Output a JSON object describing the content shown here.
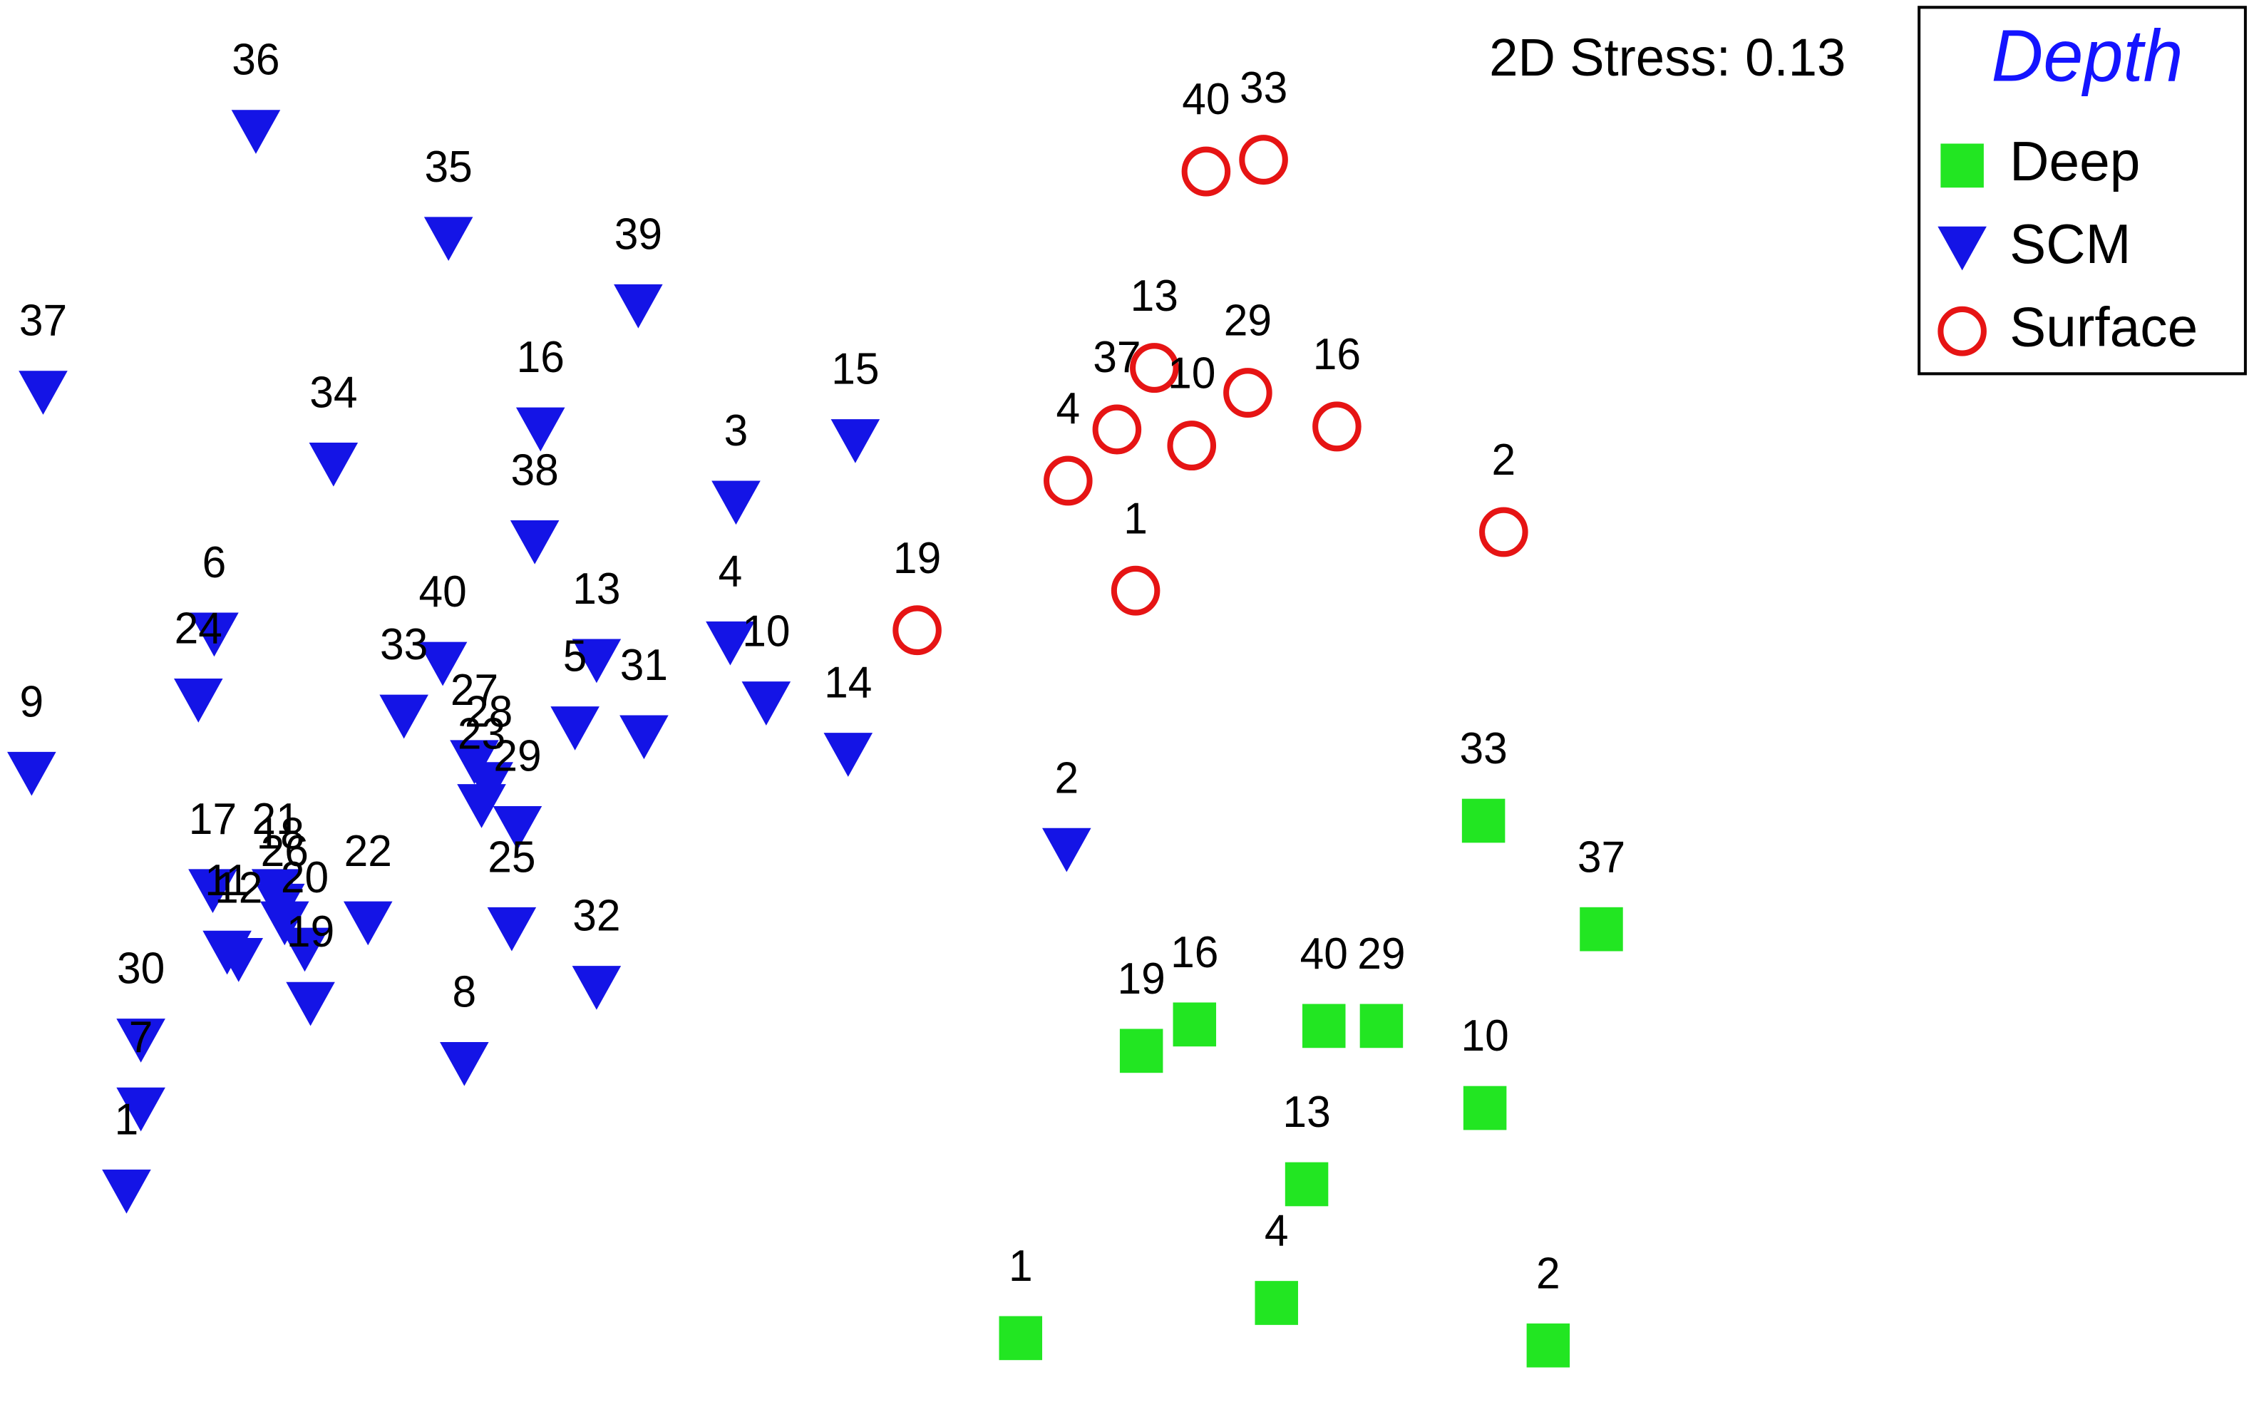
{
  "chart_data": {
    "type": "scatter",
    "annotation": "2D Stress: 0.13",
    "legend_title": "Depth",
    "legend_title_color": "#1414ff",
    "legend": "upper right",
    "grid": false,
    "xlim": [
      0,
      1568
    ],
    "ylim": [
      0,
      960
    ],
    "series": [
      {
        "name": "Deep",
        "color": "#22e622",
        "marker": "square",
        "labels": [
          "33",
          "37",
          "19",
          "16",
          "40",
          "29",
          "10",
          "13",
          "4",
          "1",
          "2"
        ],
        "x": [
          1032,
          1114,
          794,
          831,
          921,
          961,
          1033,
          909,
          888,
          710,
          1077
        ],
        "y": [
          400,
          326,
          243,
          261,
          260,
          260,
          204,
          152,
          71,
          47,
          42
        ]
      },
      {
        "name": "SCM",
        "color": "#1414e6",
        "marker": "triangle-down",
        "labels": [
          "36",
          "35",
          "39",
          "37",
          "34",
          "16",
          "15",
          "3",
          "38",
          "6",
          "24",
          "40",
          "33",
          "13",
          "5",
          "31",
          "4",
          "10",
          "14",
          "9",
          "27",
          "28",
          "23",
          "29",
          "2",
          "17",
          "21",
          "18",
          "26",
          "11",
          "12",
          "22",
          "25",
          "20",
          "19",
          "30",
          "32",
          "8",
          "7",
          "1"
        ],
        "x": [
          178,
          312,
          444,
          30,
          232,
          376,
          595,
          512,
          372,
          149,
          138,
          308,
          281,
          415,
          400,
          448,
          508,
          533,
          590,
          22,
          330,
          340,
          335,
          360,
          742,
          148,
          192,
          195,
          198,
          158,
          166,
          256,
          356,
          212,
          216,
          98,
          415,
          323,
          98,
          88
        ],
        "y": [
          870,
          797,
          751,
          692,
          643,
          667,
          659,
          617,
          590,
          527,
          482,
          507,
          471,
          509,
          463,
          457,
          521,
          480,
          445,
          432,
          440,
          425,
          410,
          395,
          380,
          352,
          352,
          342,
          330,
          310,
          305,
          330,
          326,
          312,
          275,
          250,
          286,
          234,
          203,
          147
        ]
      },
      {
        "name": "Surface",
        "color": "#e61414",
        "marker": "circle",
        "labels": [
          "40",
          "33",
          "13",
          "29",
          "37",
          "10",
          "16",
          "4",
          "2",
          "1",
          "19"
        ],
        "x": [
          839,
          879,
          803,
          868,
          777,
          829,
          930,
          743,
          1046,
          790,
          638
        ],
        "y": [
          843,
          851,
          709,
          692,
          667,
          656,
          669,
          632,
          597,
          557,
          530
        ]
      }
    ]
  }
}
